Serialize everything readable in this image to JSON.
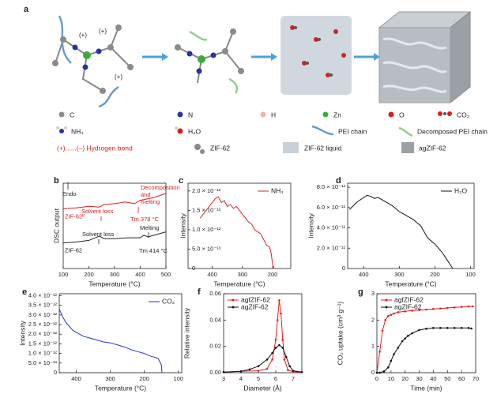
{
  "panel_a": {
    "label": "a",
    "legend": [
      "C",
      "N",
      "H",
      "Zn",
      "O",
      "CO₂",
      "NH₃",
      "H₂O",
      "PEI chain",
      "Decomposed PEI chain",
      "(+)......(–) Hydrogen bond",
      "ZIF-62",
      "ZIF-62 liquid",
      "agZIF-62"
    ]
  },
  "chart_data": [
    {
      "type": "line",
      "panel": "b",
      "xlabel": "Temperature (°C)",
      "ylabel": "DSC output",
      "xlim": [
        100,
        500
      ],
      "xticks": [
        100,
        200,
        300,
        400,
        500
      ],
      "ylim": [
        0,
        10
      ],
      "legend": "inline",
      "annotations": [
        {
          "text": "Endo",
          "color": "#222"
        },
        {
          "text": "Solvent loss",
          "color": "#d62020"
        },
        {
          "text": "Decomposition",
          "color": "#d62020"
        },
        {
          "text": "and",
          "color": "#d62020"
        },
        {
          "text": "melting",
          "color": "#d62020"
        },
        {
          "text": "Tm 378 °C",
          "color": "#d62020"
        },
        {
          "text": "Solvent loss",
          "color": "#222"
        },
        {
          "text": "Melting",
          "color": "#222"
        },
        {
          "text": "Tm 414 °C",
          "color": "#222"
        }
      ],
      "series": [
        {
          "name": "ZIF-62ᴾ",
          "color": "#d62020",
          "x": [
            100,
            150,
            200,
            240,
            260,
            300,
            340,
            378,
            400,
            450,
            500
          ],
          "values": [
            7.0,
            7.1,
            7.3,
            7.2,
            7.5,
            7.6,
            7.8,
            7.6,
            8.0,
            8.3,
            8.8
          ]
        },
        {
          "name": "ZIF-62",
          "color": "#222222",
          "x": [
            100,
            150,
            200,
            240,
            260,
            300,
            350,
            400,
            414,
            430,
            500
          ],
          "values": [
            3.0,
            3.1,
            3.3,
            3.8,
            3.5,
            3.5,
            3.6,
            3.6,
            3.9,
            3.7,
            4.3
          ]
        }
      ]
    },
    {
      "type": "line",
      "panel": "c",
      "xlabel": "Temperature (°C)",
      "ylabel": "Intensity",
      "xlim": [
        480,
        140
      ],
      "xticks": [
        400,
        300,
        200
      ],
      "ylim": [
        0,
        2.2e-12
      ],
      "legend": "upper right",
      "yticks": [
        {
          "value": 0,
          "label": "0"
        },
        {
          "value": 5e-13,
          "label": "5.0 × 10⁻¹³"
        },
        {
          "value": 1e-12,
          "label": "1.0 × 10⁻¹²"
        },
        {
          "value": 1.5e-12,
          "label": "1.5 × 10⁻¹²"
        },
        {
          "value": 2e-12,
          "label": "2.0 × 10⁻¹²"
        }
      ],
      "series": [
        {
          "name": "NH₃",
          "color": "#e02020",
          "x": [
            440,
            420,
            400,
            390,
            380,
            370,
            360,
            350,
            340,
            330,
            320,
            310,
            300,
            290,
            280,
            270,
            260,
            250,
            240,
            230,
            220,
            210,
            205,
            200,
            195
          ],
          "values": [
            1.3e-12,
            1.5e-12,
            1.7e-12,
            1.8e-12,
            1.85e-12,
            1.7e-12,
            1.75e-12,
            1.6e-12,
            1.65e-12,
            1.55e-12,
            1.6e-12,
            1.5e-12,
            1.4e-12,
            1.3e-12,
            1.2e-12,
            1.15e-12,
            1e-12,
            9.5e-13,
            9e-13,
            7.5e-13,
            6e-13,
            5.5e-13,
            4e-13,
            1e-13,
            0
          ]
        }
      ]
    },
    {
      "type": "line",
      "panel": "d",
      "xlabel": "Temperature (°C)",
      "ylabel": "Intensity",
      "xlim": [
        445,
        90
      ],
      "xticks": [
        400,
        300,
        200,
        100
      ],
      "ylim": [
        0,
        8.4e-12
      ],
      "legend": "upper right",
      "yticks": [
        {
          "value": 0,
          "label": "0"
        },
        {
          "value": 2e-12,
          "label": "2.0 × 10⁻¹²"
        },
        {
          "value": 4e-12,
          "label": "4.0 × 10⁻¹²"
        },
        {
          "value": 6e-12,
          "label": "6.0 × 10⁻¹²"
        },
        {
          "value": 8e-12,
          "label": "8.0 × 10⁻¹²"
        }
      ],
      "series": [
        {
          "name": "H₂O",
          "color": "#111111",
          "x": [
            440,
            420,
            400,
            390,
            380,
            370,
            360,
            340,
            320,
            300,
            280,
            260,
            240,
            230,
            220,
            200,
            180,
            165,
            150
          ],
          "values": [
            5.8e-12,
            6.5e-12,
            7e-12,
            7.2e-12,
            7.1e-12,
            6.9e-12,
            7e-12,
            6.6e-12,
            6.2e-12,
            5.6e-12,
            5.2e-12,
            4.8e-12,
            4.2e-12,
            3.6e-12,
            3e-12,
            2.4e-12,
            1.6e-12,
            8e-13,
            0
          ]
        }
      ]
    },
    {
      "type": "line",
      "panel": "e",
      "xlabel": "Temperature (°C)",
      "ylabel": "Intensity",
      "xlim": [
        450,
        90
      ],
      "xticks": [
        400,
        300,
        200,
        100
      ],
      "ylim": [
        0,
        4.1e-12
      ],
      "legend": "upper right",
      "yticks": [
        {
          "value": 0,
          "label": "0"
        },
        {
          "value": 5e-13,
          "label": "5.0 × 10⁻¹³"
        },
        {
          "value": 1e-12,
          "label": "1.0 × 10⁻¹²"
        },
        {
          "value": 1.5e-12,
          "label": "1.5 × 10⁻¹²"
        },
        {
          "value": 2e-12,
          "label": "2.0 × 10⁻¹²"
        },
        {
          "value": 2.5e-12,
          "label": "2.5 × 10⁻¹²"
        },
        {
          "value": 3e-12,
          "label": "3.0 × 10⁻¹²"
        },
        {
          "value": 3.5e-12,
          "label": "3.5 × 10⁻¹²"
        },
        {
          "value": 4e-12,
          "label": "4.0 × 10⁻¹²"
        }
      ],
      "series": [
        {
          "name": "CO₂",
          "color": "#2233cc",
          "x": [
            450,
            440,
            430,
            420,
            410,
            400,
            380,
            360,
            340,
            320,
            300,
            280,
            260,
            240,
            220,
            200,
            180,
            160,
            150,
            148
          ],
          "values": [
            3.3e-12,
            2.9e-12,
            2.6e-12,
            2.4e-12,
            2.2e-12,
            2.1e-12,
            1.9e-12,
            1.8e-12,
            1.7e-12,
            1.6e-12,
            1.55e-12,
            1.45e-12,
            1.35e-12,
            1.2e-12,
            1.1e-12,
            1e-12,
            8.5e-13,
            7.5e-13,
            4e-13,
            0
          ]
        }
      ]
    },
    {
      "type": "line",
      "panel": "f",
      "xlabel": "Diameter (Å)",
      "ylabel": "Relative intensity",
      "xlim": [
        3,
        7.5
      ],
      "xticks": [
        3,
        4,
        5,
        6,
        7
      ],
      "ylim": [
        0,
        0.06
      ],
      "legend": "upper left",
      "markers": true,
      "yticks": [
        {
          "value": 0,
          "label": "0.00"
        },
        {
          "value": 0.02,
          "label": "0.02"
        },
        {
          "value": 0.04,
          "label": "0.04"
        },
        {
          "value": 0.06,
          "label": "0.06"
        }
      ],
      "series": [
        {
          "name": "agfZIF-62",
          "color": "#e02020",
          "x": [
            3,
            4,
            5,
            5.5,
            5.8,
            6.0,
            6.1,
            6.2,
            6.3,
            6.4,
            6.5,
            6.7,
            7,
            7.5
          ],
          "values": [
            0.0005,
            0.001,
            0.0015,
            0.003,
            0.01,
            0.025,
            0.04,
            0.055,
            0.045,
            0.025,
            0.01,
            0.002,
            0.0008,
            0.0005
          ]
        },
        {
          "name": "agZIF-62",
          "color": "#111111",
          "x": [
            3,
            4,
            4.5,
            5,
            5.5,
            5.8,
            6.0,
            6.2,
            6.4,
            6.6,
            6.8,
            7,
            7.5
          ],
          "values": [
            0.0005,
            0.001,
            0.0025,
            0.005,
            0.01,
            0.015,
            0.019,
            0.021,
            0.019,
            0.012,
            0.005,
            0.0015,
            0.0005
          ]
        }
      ]
    },
    {
      "type": "line",
      "panel": "g",
      "xlabel": "Time (min)",
      "ylabel": "CO₂ uptake (cm³ g⁻¹)",
      "xlim": [
        0,
        70
      ],
      "xticks": [
        0,
        10,
        20,
        30,
        40,
        50,
        60,
        70
      ],
      "ylim": [
        0,
        3
      ],
      "yticks": [
        0,
        1,
        2,
        3
      ],
      "legend": "upper left",
      "markers": true,
      "series": [
        {
          "name": "agfZIF-62",
          "color": "#e02020",
          "x": [
            0,
            2,
            4,
            6,
            8,
            10,
            12,
            15,
            20,
            25,
            30,
            35,
            40,
            45,
            50,
            55,
            60,
            65,
            68
          ],
          "values": [
            0,
            0.8,
            1.6,
            2.0,
            2.15,
            2.2,
            2.25,
            2.3,
            2.33,
            2.36,
            2.38,
            2.4,
            2.42,
            2.44,
            2.46,
            2.48,
            2.5,
            2.52,
            2.52
          ]
        },
        {
          "name": "agZIF-62",
          "color": "#111111",
          "x": [
            0,
            2,
            5,
            8,
            10,
            12,
            15,
            18,
            20,
            22,
            25,
            30,
            35,
            40,
            45,
            50,
            55,
            60,
            65,
            67
          ],
          "values": [
            0,
            0,
            0.05,
            0.2,
            0.45,
            0.7,
            0.95,
            1.2,
            1.3,
            1.4,
            1.5,
            1.62,
            1.67,
            1.7,
            1.7,
            1.7,
            1.7,
            1.7,
            1.7,
            1.68
          ]
        }
      ]
    }
  ]
}
